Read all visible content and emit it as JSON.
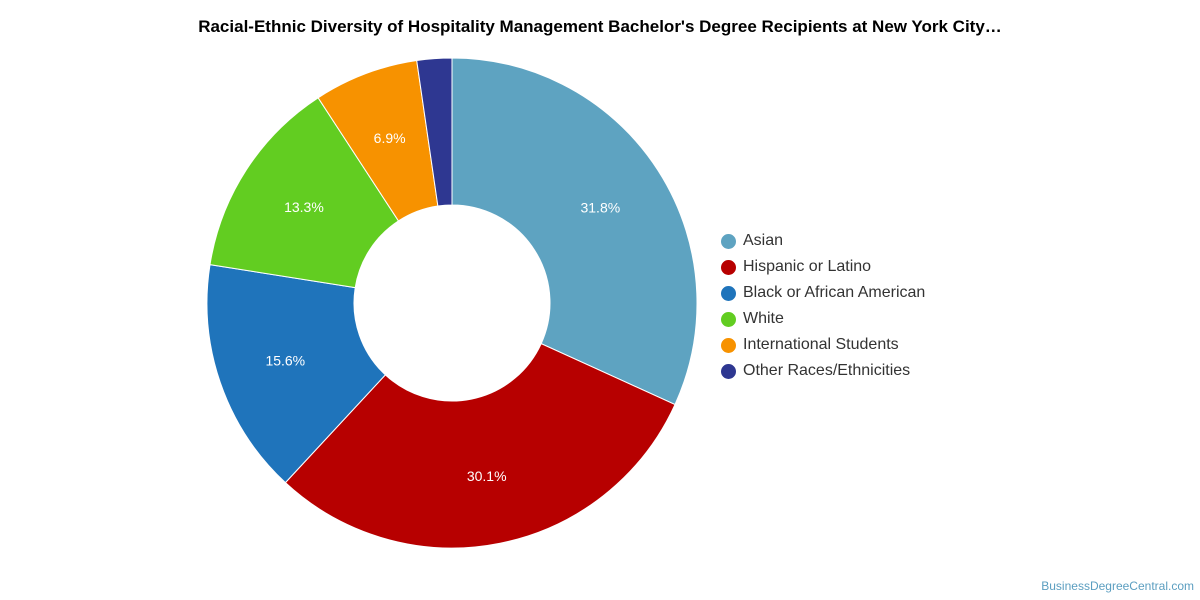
{
  "chart_data": {
    "type": "pie",
    "donut": true,
    "title": "Racial-Ethnic Diversity of Hospitality Management Bachelor's Degree Recipients at New York City…",
    "categories": [
      "Asian",
      "Hispanic or Latino",
      "Black or African American",
      "White",
      "International Students",
      "Other Races/Ethnicities"
    ],
    "values": [
      31.8,
      30.1,
      15.6,
      13.3,
      6.9,
      2.3
    ],
    "data_labels": [
      "31.8%",
      "30.1%",
      "15.6%",
      "13.3%",
      "6.9%",
      ""
    ],
    "colors": [
      "#5ea3c1",
      "#b70000",
      "#1f74bb",
      "#62cd21",
      "#f79200",
      "#2e3791"
    ],
    "legend_position": "right",
    "start_angle_deg": 0,
    "direction": "clockwise"
  },
  "watermark": "BusinessDegreeCentral.com"
}
